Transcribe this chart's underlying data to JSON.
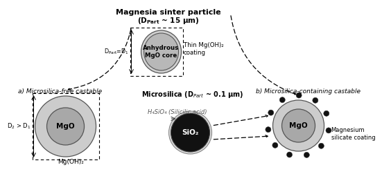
{
  "title_top": "Magnesia sinter particle",
  "title_top2": "(D$_{Part}$ ~ 15 μm)",
  "label_a": "a) Microsilica-free castable",
  "label_b": "b) Microsilica-containing castable",
  "label_microsilica": "Microsilica (D$_{Part}$ ~ 0.1 μm)",
  "label_silicic": "H₄SiO₄ (Silicilic acid)",
  "label_anhydrous": "Anhydrous\nMgO core",
  "label_thin": "Thin Mg(OH)₂\ncoating",
  "label_mgo_left": "MgO",
  "label_mgoh_left": "Mg(OH)₂",
  "label_d2d1": "D$_2$ > D$_1$",
  "label_dpart": "D$_{Part}$ = D$_1$",
  "label_sio2": "SiO₂",
  "label_mgo_right": "MgO",
  "label_mag_silicate": "Magnesium\nsilicate coating",
  "color_bg": "#ffffff",
  "color_light_gray": "#c8c8c8",
  "color_mid_gray": "#aaaaaa",
  "color_dark_gray": "#888888",
  "color_black": "#111111"
}
